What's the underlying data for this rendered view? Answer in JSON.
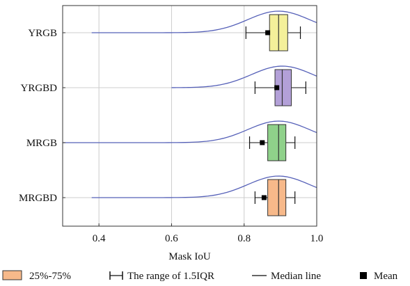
{
  "chart_data": {
    "type": "box-violin",
    "xlabel": "Mask IoU",
    "xlim": [
      0.3,
      1.0
    ],
    "xticks": [
      "0.4",
      "0.6",
      "0.8",
      "1.0"
    ],
    "xtick_values": [
      0.4,
      0.6,
      0.8,
      1.0
    ],
    "grid": true,
    "categories": [
      "YRGB",
      "YRGBD",
      "MRGB",
      "MRGBD"
    ],
    "series": [
      {
        "name": "YRGB",
        "color": "#f4f09a",
        "q1": 0.87,
        "median": 0.895,
        "q3": 0.92,
        "whisker_low": 0.805,
        "whisker_high": 0.955,
        "mean": 0.865,
        "violin_min": 0.38,
        "violin_max": 1.0
      },
      {
        "name": "YRGBD",
        "color": "#b3a0d8",
        "q1": 0.885,
        "median": 0.905,
        "q3": 0.93,
        "whisker_low": 0.83,
        "whisker_high": 0.97,
        "mean": 0.89,
        "violin_min": 0.6,
        "violin_max": 1.0
      },
      {
        "name": "MRGB",
        "color": "#8fd18a",
        "q1": 0.865,
        "median": 0.895,
        "q3": 0.915,
        "whisker_low": 0.815,
        "whisker_high": 0.94,
        "mean": 0.85,
        "violin_min": 0.3,
        "violin_max": 1.0
      },
      {
        "name": "MRGBD",
        "color": "#f7b98a",
        "q1": 0.865,
        "median": 0.895,
        "q3": 0.915,
        "whisker_low": 0.83,
        "whisker_high": 0.94,
        "mean": 0.855,
        "violin_min": 0.38,
        "violin_max": 1.0
      }
    ],
    "legend": {
      "placement": "bottom",
      "items": [
        {
          "symbol": "box",
          "label": "25%-75%",
          "color": "#f7b98a"
        },
        {
          "symbol": "whisker",
          "label": "The range of 1.5IQR"
        },
        {
          "symbol": "line",
          "label": "Median line"
        },
        {
          "symbol": "square",
          "label": "Mean"
        }
      ]
    },
    "colors": {
      "violin": "#5560b8",
      "grid": "#cccccc",
      "axis": "#333333"
    }
  }
}
